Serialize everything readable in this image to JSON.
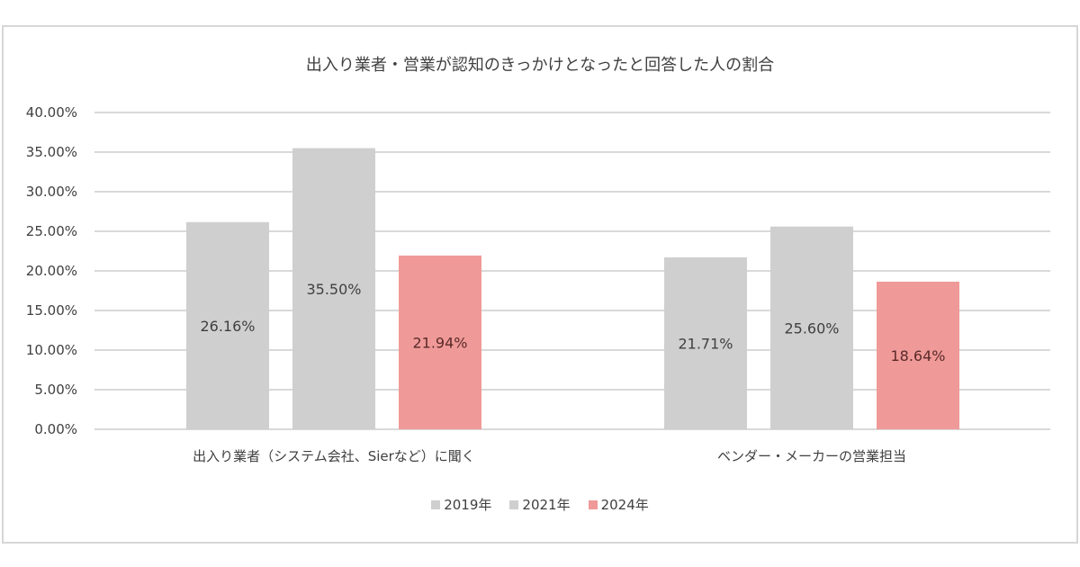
{
  "chart_data": {
    "type": "bar",
    "title": "出入り業者・営業が認知のきっかけとなったと回答した人の割合",
    "xlabel": "",
    "ylabel": "",
    "ylim": [
      0,
      40
    ],
    "yticks": [
      "0.00%",
      "5.00%",
      "10.00%",
      "15.00%",
      "20.00%",
      "25.00%",
      "30.00%",
      "35.00%",
      "40.00%"
    ],
    "ytick_values": [
      0,
      5,
      10,
      15,
      20,
      25,
      30,
      35,
      40
    ],
    "grid": true,
    "legend_position": "bottom",
    "categories": [
      "出入り業者（システム会社、Sierなど）に聞く",
      "ベンダー・メーカーの営業担当"
    ],
    "series": [
      {
        "name": "2019年",
        "color": "#d0cfcf",
        "values": [
          26.16,
          21.71
        ],
        "labels": [
          "26.16%",
          "21.71%"
        ]
      },
      {
        "name": "2021年",
        "color": "#d0cfcf",
        "values": [
          35.5,
          25.6
        ],
        "labels": [
          "35.50%",
          "25.60%"
        ]
      },
      {
        "name": "2024年",
        "color": "#ef9a98",
        "values": [
          21.94,
          18.64
        ],
        "labels": [
          "21.94%",
          "18.64%"
        ]
      }
    ]
  },
  "colors": {
    "gridline": "#d9d9d9",
    "text": "#404040",
    "label_on_red": "#5a2a2a",
    "frame": "#d6d6d6"
  }
}
